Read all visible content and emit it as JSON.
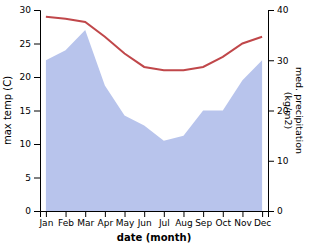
{
  "chart_data": {
    "type": "line",
    "x_label": "date (month)",
    "y_label": "max temp (C)",
    "y2_label": "med. precipitation\n(kg/m2)",
    "categories": [
      "Jan",
      "Feb",
      "Mar",
      "Apr",
      "May",
      "Jun",
      "Jul",
      "Aug",
      "Sep",
      "Oct",
      "Nov",
      "Dec"
    ],
    "series": [
      {
        "type": "area",
        "axis": "y2",
        "color": "#b8c4ec",
        "values": [
          30,
          32,
          36,
          25,
          19,
          17,
          14,
          15,
          20,
          20,
          26,
          30
        ]
      },
      {
        "type": "line",
        "color": "#c0474a",
        "values": [
          29,
          28.7,
          28.2,
          26,
          23.5,
          21.5,
          21,
          21,
          21.5,
          23,
          25,
          26
        ]
      }
    ],
    "ylim": [
      0,
      30
    ],
    "yticks": [
      0,
      5,
      10,
      15,
      20,
      25,
      30
    ],
    "y2lim": [
      0,
      40
    ],
    "y2ticks": [
      0,
      10,
      20,
      30,
      40
    ],
    "grid": false
  }
}
